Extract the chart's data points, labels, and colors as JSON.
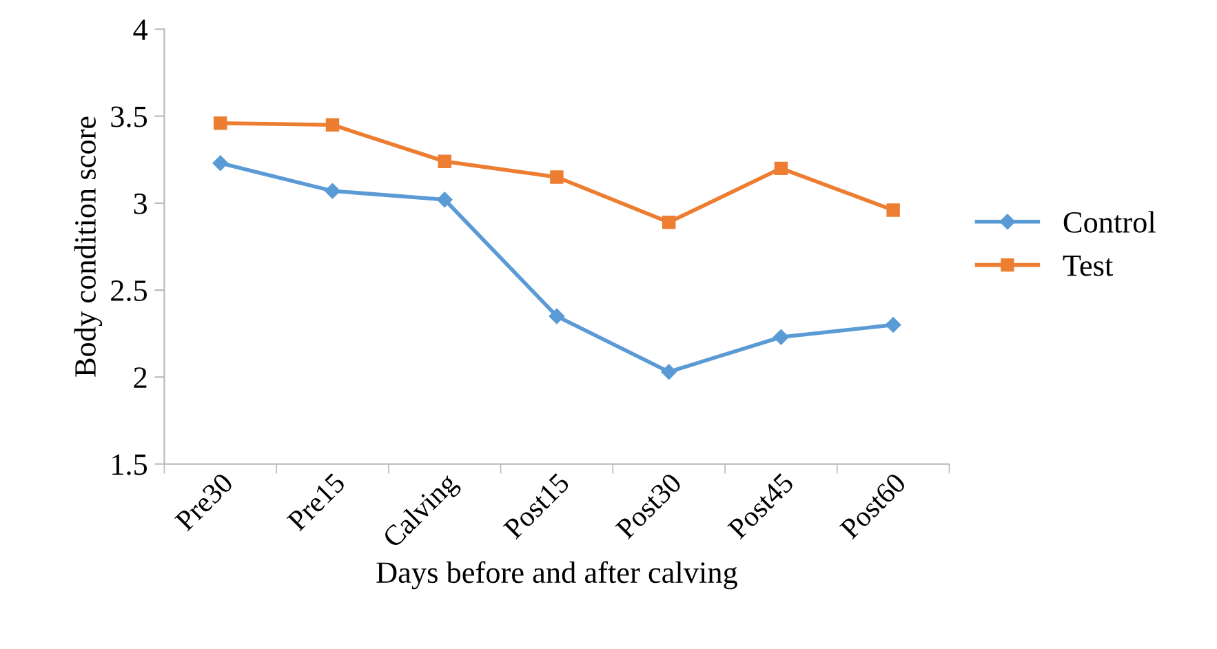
{
  "chart_data": {
    "type": "line",
    "xlabel": "Days before and after calving",
    "ylabel": "Body condition score",
    "categories": [
      "Pre30",
      "Pre15",
      "Calving",
      "Post15",
      "Post30",
      "Post45",
      "Post60"
    ],
    "series": [
      {
        "name": "Control",
        "color": "#5b9bd5",
        "marker": "diamond",
        "values": [
          3.23,
          3.07,
          3.02,
          2.35,
          2.03,
          2.23,
          2.3
        ]
      },
      {
        "name": "Test",
        "color": "#ed7d31",
        "marker": "square",
        "values": [
          3.46,
          3.45,
          3.24,
          3.15,
          2.89,
          3.2,
          2.96
        ]
      }
    ],
    "ylim": [
      1.5,
      4
    ],
    "yticks": [
      1.5,
      2,
      2.5,
      3,
      3.5,
      4
    ],
    "grid": false,
    "legend": "right"
  }
}
